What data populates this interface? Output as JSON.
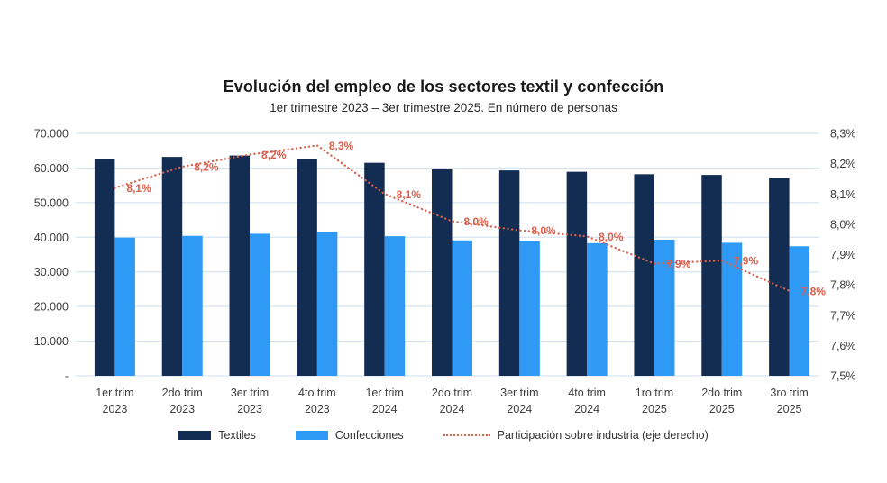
{
  "title": "Evolución del empleo de los sectores textil y confección",
  "subtitle": "1er trimestre 2023 – 3er trimestre 2025. En número de personas",
  "colors": {
    "textiles": "#132d52",
    "confecciones": "#2e9af5",
    "line": "#dc5f4b",
    "grid": "#d9e4f1",
    "axis_text": "#3d3d3d",
    "title_text": "#191919"
  },
  "legend": [
    {
      "label": "Textiles"
    },
    {
      "label": "Confecciones"
    },
    {
      "label": "Participación sobre industria (eje derecho)"
    }
  ],
  "chart_data": {
    "type": "bar",
    "subtype": "grouped-bars-with-dotted-line-combo",
    "categories": [
      "1er trim 2023",
      "2do trim 2023",
      "3er trim 2023",
      "4to trim 2023",
      "1er trim 2024",
      "2do trim 2024",
      "3er trim 2024",
      "4to trim 2024",
      "1ro trim 2025",
      "2do trim 2025",
      "3ro trim 2025"
    ],
    "series": [
      {
        "name": "Textiles",
        "type": "bar",
        "axis": "left",
        "color": "#132d52",
        "values": [
          62700,
          63200,
          63600,
          62700,
          61500,
          59600,
          59300,
          58900,
          58200,
          58000,
          57100
        ]
      },
      {
        "name": "Confecciones",
        "type": "bar",
        "axis": "left",
        "color": "#2e9af5",
        "values": [
          39900,
          40400,
          41000,
          41500,
          40300,
          39100,
          38800,
          38300,
          39300,
          38400,
          37400
        ]
      },
      {
        "name": "Participación sobre industria (eje derecho)",
        "type": "dotted-line",
        "axis": "right",
        "color": "#dc5f4b",
        "values": [
          8.12,
          8.19,
          8.23,
          8.26,
          8.1,
          8.01,
          7.98,
          7.96,
          7.87,
          7.88,
          7.78
        ],
        "point_labels": [
          "8,1%",
          "8,2%",
          "8,2%",
          "8,3%",
          "8,1%",
          "8,0%",
          "8,0%",
          "8,0%",
          "7,9%",
          "7,9%",
          "7,8%"
        ]
      }
    ],
    "left_axis": {
      "min": 0,
      "max": 70000,
      "tick_labels": [
        "70.000",
        "60.000",
        "50.000",
        "40.000",
        "30.000",
        "20.000",
        "10.000",
        "-"
      ]
    },
    "right_axis": {
      "min": 7.5,
      "max": 8.3,
      "tick_labels": [
        "8,3%",
        "8,2%",
        "8,1%",
        "8,0%",
        "7,9%",
        "7,8%",
        "7,7%",
        "7,6%",
        "7,5%"
      ]
    },
    "grid": true,
    "legend_position": "bottom"
  }
}
